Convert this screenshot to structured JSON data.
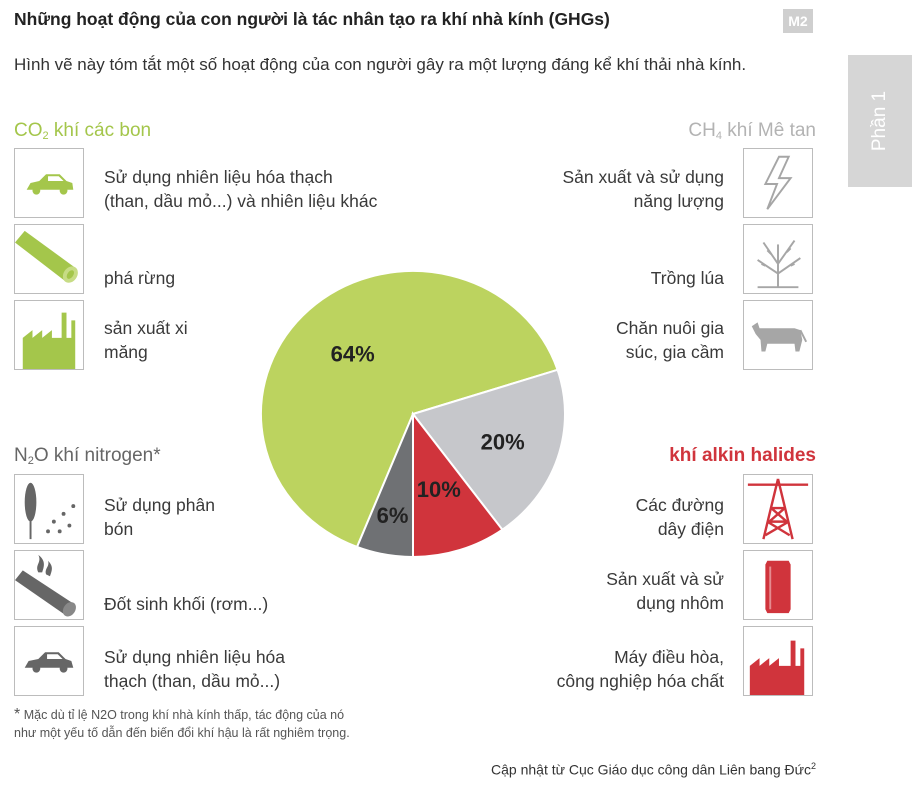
{
  "header": {
    "title": "Những hoạt động của con người là tác nhân tạo ra khí nhà kính (GHGs)",
    "badge": "M2",
    "intro": "Hình vẽ này tóm tắt một số hoạt động của con người gây ra một lượng đáng kể khí thải nhà kính.",
    "side_tab": "Phần 1"
  },
  "categories": {
    "co2": {
      "formula_main": "CO",
      "formula_sub": "2",
      "name": " khí các bon",
      "color": "#a4c64b"
    },
    "ch4": {
      "formula_main": "CH",
      "formula_sub": "4",
      "name": " khí Mê tan",
      "color": "#b3b3b3"
    },
    "n2o": {
      "formula_main": "N",
      "formula_sub": "2",
      "formula_rest": "O",
      "name": " khí nitrogen*",
      "color": "#666666"
    },
    "hal": {
      "name": "khí alkin halides",
      "color": "#d0343c"
    }
  },
  "activities": {
    "co2": [
      {
        "line1": "Sử dụng nhiên liệu hóa thạch",
        "line2": "(than, dầu mỏ...) và nhiên liệu khác",
        "icon": "car-icon"
      },
      {
        "line1": "phá rừng",
        "line2": "",
        "icon": "log-icon"
      },
      {
        "line1": "sản xuất xi",
        "line2": "măng",
        "icon": "factory-icon"
      }
    ],
    "ch4": [
      {
        "line1": "Sản xuất và sử dụng",
        "line2": "năng lượng",
        "icon": "lightning-icon"
      },
      {
        "line1": "Trồng lúa",
        "line2": "",
        "icon": "rice-plant-icon"
      },
      {
        "line1": "Chăn nuôi gia",
        "line2": "súc, gia cầm",
        "icon": "cow-icon"
      }
    ],
    "n2o": [
      {
        "line1": "Sử dụng phân",
        "line2": "bón",
        "icon": "fertilizer-icon"
      },
      {
        "line1": "Đốt sinh khối (rơm...)",
        "line2": "",
        "icon": "burning-log-icon"
      },
      {
        "line1": "Sử dụng nhiên liệu hóa",
        "line2": "thạch (than, dầu mỏ...)",
        "icon": "car-icon"
      }
    ],
    "hal": [
      {
        "line1": "Các đường",
        "line2": "dây điện",
        "icon": "power-tower-icon"
      },
      {
        "line1": "Sản xuất và sử",
        "line2": "dụng nhôm",
        "icon": "can-icon"
      },
      {
        "line1": "Máy điều hòa,",
        "line2": "công nghiệp hóa chất",
        "icon": "factory-icon"
      }
    ]
  },
  "chart_data": {
    "type": "pie",
    "slices": [
      {
        "label": "64%",
        "value": 64,
        "color": "#bcd35f"
      },
      {
        "label": "20%",
        "value": 20,
        "color": "#c6c7cb"
      },
      {
        "label": "10%",
        "value": 10,
        "color": "#d0343c"
      },
      {
        "label": "6%",
        "value": 6,
        "color": "#6f7174"
      }
    ]
  },
  "footnote": {
    "star": "*",
    "line1": "Mặc dù tỉ lệ N2O trong khí nhà kính thấp, tác động của nó",
    "line2": "như một yếu tố dẫn đến biến đổi khí hậu là rất nghiêm trọng."
  },
  "source": {
    "text": "Cập nhật từ Cục Giáo dục công dân Liên bang Đức",
    "sup": "2"
  }
}
